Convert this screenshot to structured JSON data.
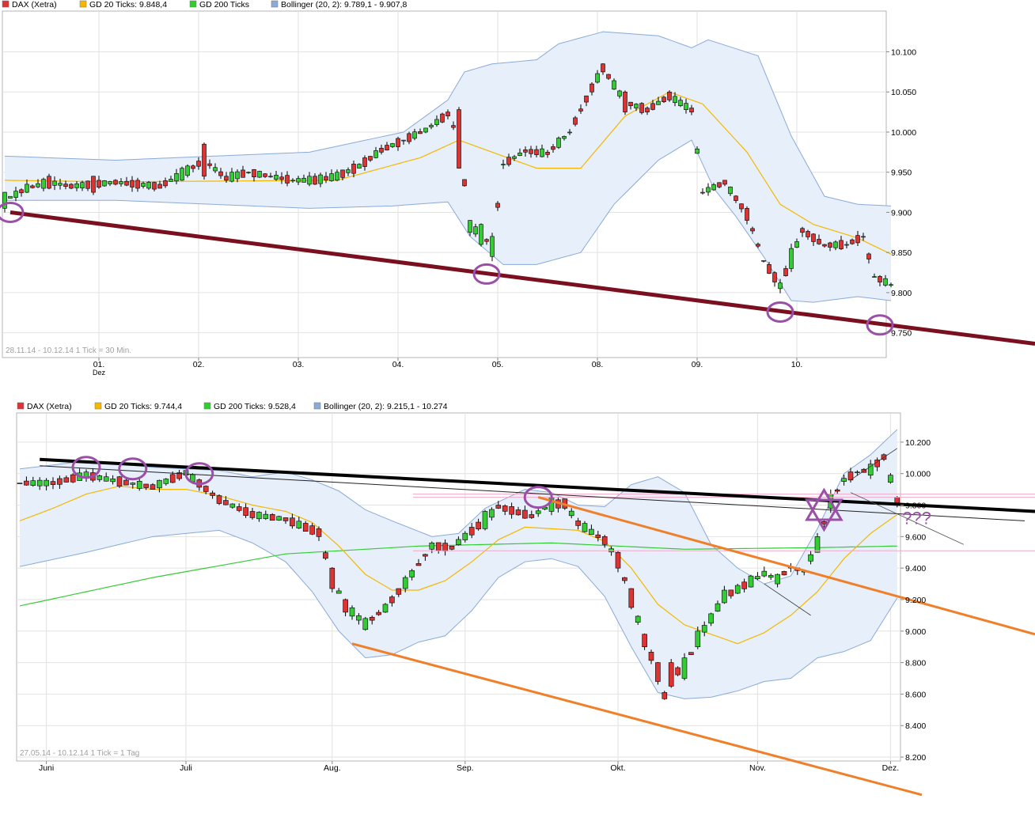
{
  "colors": {
    "bull": "#33cc33",
    "bear": "#dd3333",
    "ma20": "#f5b800",
    "ma200": "#33cc33",
    "band_fill": "#e6effa",
    "band_line": "#8aaad8",
    "oval": "#9b4fa8",
    "maroon": "#7a0f1f",
    "orange": "#f07f2a",
    "black": "#000000",
    "pink": "#f2a9c9",
    "grid": "#e2e2e2",
    "border": "#b5b5b5"
  },
  "chart_data": [
    {
      "type": "candlestick",
      "legend": [
        {
          "color": "#dd3333",
          "text": "DAX (Xetra)"
        },
        {
          "color": "#f5b800",
          "text": "GD 20 Ticks: 9.848,4"
        },
        {
          "color": "#33cc33",
          "text": "GD 200 Ticks"
        },
        {
          "color": "#8aaad8",
          "text": "Bollinger (20, 2): 9.789,1 - 9.907,8"
        }
      ],
      "info": "28.11.14 - 10.12.14   1 Tick = 30 Min.",
      "yticks": [
        "10.100",
        "10.050",
        "10.000",
        "9.950",
        "9.900",
        "9.850",
        "9.800",
        "9.750"
      ],
      "ylim": [
        9725,
        10135
      ],
      "xticks": [
        {
          "label": "01.",
          "sub": "Dez",
          "i": 17
        },
        {
          "label": "02.",
          "i": 35
        },
        {
          "label": "03.",
          "i": 53
        },
        {
          "label": "04.",
          "i": 71
        },
        {
          "label": "05.",
          "i": 89
        },
        {
          "label": "08.",
          "i": 107
        },
        {
          "label": "09.",
          "i": 125
        },
        {
          "label": "10.",
          "i": 143
        }
      ],
      "anchors": [
        [
          0,
          9905,
          9925
        ],
        [
          4,
          9925,
          9935
        ],
        [
          8,
          9945,
          9930
        ],
        [
          12,
          9935,
          9930
        ],
        [
          16,
          9945,
          9925
        ],
        [
          20,
          9940,
          9935
        ],
        [
          24,
          9940,
          9930
        ],
        [
          28,
          9935,
          9930
        ],
        [
          32,
          9940,
          9955
        ],
        [
          36,
          9985,
          9945
        ],
        [
          40,
          9945,
          9940
        ],
        [
          44,
          9950,
          9950
        ],
        [
          48,
          9945,
          9945
        ],
        [
          52,
          9940,
          9940
        ],
        [
          56,
          9945,
          9935
        ],
        [
          60,
          9940,
          9950
        ],
        [
          64,
          9955,
          9960
        ],
        [
          68,
          9980,
          9975
        ],
        [
          72,
          9990,
          9990
        ],
        [
          76,
          10000,
          10005
        ],
        [
          80,
          10025,
          10020
        ],
        [
          82,
          10028,
          9955
        ],
        [
          84,
          9875,
          9890
        ],
        [
          86,
          9860,
          9885
        ],
        [
          88,
          9845,
          9870
        ],
        [
          90,
          9960,
          9960
        ],
        [
          94,
          9978,
          9975
        ],
        [
          98,
          9975,
          9972
        ],
        [
          102,
          10000,
          10000
        ],
        [
          106,
          10060,
          10050
        ],
        [
          108,
          10085,
          10075
        ],
        [
          112,
          10050,
          10025
        ],
        [
          116,
          10030,
          10025
        ],
        [
          120,
          10050,
          10040
        ],
        [
          124,
          10030,
          10025
        ],
        [
          126,
          9925,
          9925
        ],
        [
          130,
          9940,
          9935
        ],
        [
          134,
          9905,
          9890
        ],
        [
          137,
          9840,
          9840
        ],
        [
          140,
          9805,
          9812
        ],
        [
          142,
          9830,
          9855
        ],
        [
          144,
          9880,
          9875
        ],
        [
          148,
          9860,
          9858
        ],
        [
          152,
          9860,
          9860
        ],
        [
          155,
          9870,
          9870
        ],
        [
          157,
          9820,
          9820
        ],
        [
          160,
          9810,
          9810
        ]
      ],
      "ma20_pts": [
        [
          0,
          9940
        ],
        [
          20,
          9938
        ],
        [
          60,
          9940
        ],
        [
          75,
          9968
        ],
        [
          82,
          9990
        ],
        [
          88,
          9975
        ],
        [
          96,
          9955
        ],
        [
          104,
          9955
        ],
        [
          112,
          10020
        ],
        [
          120,
          10050
        ],
        [
          126,
          10035
        ],
        [
          134,
          9975
        ],
        [
          140,
          9910
        ],
        [
          146,
          9885
        ],
        [
          154,
          9868
        ],
        [
          160,
          9848
        ]
      ],
      "band_upper_pts": [
        [
          0,
          9970
        ],
        [
          20,
          9965
        ],
        [
          55,
          9975
        ],
        [
          72,
          10000
        ],
        [
          80,
          10040
        ],
        [
          83,
          10075
        ],
        [
          88,
          10085
        ],
        [
          96,
          10090
        ],
        [
          100,
          10110
        ],
        [
          108,
          10125
        ],
        [
          118,
          10120
        ],
        [
          124,
          10105
        ],
        [
          127,
          10115
        ],
        [
          136,
          10095
        ],
        [
          142,
          9995
        ],
        [
          148,
          9920
        ],
        [
          154,
          9910
        ],
        [
          160,
          9908
        ]
      ],
      "band_lower_pts": [
        [
          0,
          9915
        ],
        [
          20,
          9915
        ],
        [
          55,
          9905
        ],
        [
          70,
          9908
        ],
        [
          80,
          9913
        ],
        [
          84,
          9870
        ],
        [
          90,
          9835
        ],
        [
          96,
          9835
        ],
        [
          104,
          9850
        ],
        [
          110,
          9910
        ],
        [
          118,
          9965
        ],
        [
          124,
          9990
        ],
        [
          128,
          9930
        ],
        [
          132,
          9895
        ],
        [
          137,
          9845
        ],
        [
          142,
          9790
        ],
        [
          146,
          9788
        ],
        [
          154,
          9795
        ],
        [
          160,
          9790
        ]
      ],
      "trend_maroon": [
        [
          1,
          9900
        ],
        [
          161,
          9757
        ]
      ],
      "ovals": [
        1,
        87,
        140,
        158
      ]
    },
    {
      "type": "candlestick",
      "legend": [
        {
          "color": "#dd3333",
          "text": "DAX (Xetra)"
        },
        {
          "color": "#f5b800",
          "text": "GD 20 Ticks: 9.744,4"
        },
        {
          "color": "#33cc33",
          "text": "GD 200 Ticks: 9.528,4"
        },
        {
          "color": "#8aaad8",
          "text": "Bollinger (20, 2): 9.215,1 - 10.274"
        }
      ],
      "info": "27.05.14 - 10.12.14   1 Tick = 1 Tag",
      "yticks": [
        "10.200",
        "10.000",
        "9.800",
        "9.600",
        "9.400",
        "9.200",
        "9.000",
        "8.800",
        "8.600",
        "8.400",
        "8.200"
      ],
      "ylim": [
        8160,
        10320
      ],
      "xticks": [
        {
          "label": "Juni",
          "i": 4
        },
        {
          "label": "Juli",
          "i": 25
        },
        {
          "label": "Aug.",
          "i": 47
        },
        {
          "label": "Sep.",
          "i": 67
        },
        {
          "label": "Okt.",
          "i": 90
        },
        {
          "label": "Nov.",
          "i": 111
        },
        {
          "label": "Dez.",
          "i": 131
        }
      ],
      "anchors": [
        [
          0,
          9940,
          9940
        ],
        [
          5,
          9950,
          9930
        ],
        [
          10,
          9970,
          10010
        ],
        [
          15,
          9980,
          9920
        ],
        [
          20,
          9930,
          9900
        ],
        [
          25,
          9990,
          10020
        ],
        [
          30,
          9860,
          9810
        ],
        [
          35,
          9760,
          9720
        ],
        [
          40,
          9720,
          9700
        ],
        [
          45,
          9650,
          9600
        ],
        [
          47,
          9400,
          9270
        ],
        [
          49,
          9200,
          9120
        ],
        [
          52,
          9010,
          9080
        ],
        [
          55,
          9120,
          9170
        ],
        [
          58,
          9270,
          9340
        ],
        [
          62,
          9520,
          9560
        ],
        [
          65,
          9540,
          9520
        ],
        [
          70,
          9650,
          9760
        ],
        [
          72,
          9800,
          9780
        ],
        [
          77,
          9740,
          9720
        ],
        [
          80,
          9760,
          9850
        ],
        [
          82,
          9840,
          9780
        ],
        [
          84,
          9700,
          9670
        ],
        [
          88,
          9600,
          9550
        ],
        [
          90,
          9500,
          9400
        ],
        [
          92,
          9270,
          9150
        ],
        [
          94,
          8980,
          8900
        ],
        [
          96,
          8800,
          8680
        ],
        [
          97,
          8610,
          8570
        ],
        [
          98,
          8800,
          8650
        ],
        [
          100,
          8700,
          8830
        ],
        [
          102,
          8900,
          9000
        ],
        [
          104,
          9050,
          9110
        ],
        [
          106,
          9180,
          9260
        ],
        [
          108,
          9240,
          9290
        ],
        [
          110,
          9280,
          9350
        ],
        [
          112,
          9350,
          9380
        ],
        [
          114,
          9300,
          9360
        ],
        [
          116,
          9410,
          9400
        ],
        [
          118,
          9380,
          9380
        ],
        [
          120,
          9500,
          9600
        ],
        [
          122,
          9780,
          9870
        ],
        [
          124,
          9950,
          9970
        ],
        [
          126,
          10010,
          10010
        ],
        [
          128,
          9990,
          10060
        ],
        [
          130,
          10120,
          10090
        ],
        [
          132,
          9850,
          9810
        ]
      ],
      "ma20_pts": [
        [
          0,
          9700
        ],
        [
          5,
          9780
        ],
        [
          10,
          9870
        ],
        [
          15,
          9920
        ],
        [
          20,
          9900
        ],
        [
          25,
          9900
        ],
        [
          30,
          9860
        ],
        [
          35,
          9800
        ],
        [
          40,
          9760
        ],
        [
          44,
          9690
        ],
        [
          48,
          9540
        ],
        [
          52,
          9360
        ],
        [
          56,
          9260
        ],
        [
          60,
          9260
        ],
        [
          64,
          9320
        ],
        [
          68,
          9440
        ],
        [
          72,
          9580
        ],
        [
          76,
          9660
        ],
        [
          80,
          9650
        ],
        [
          84,
          9640
        ],
        [
          88,
          9570
        ],
        [
          92,
          9400
        ],
        [
          96,
          9170
        ],
        [
          100,
          9040
        ],
        [
          104,
          8980
        ],
        [
          108,
          8920
        ],
        [
          112,
          8990
        ],
        [
          116,
          9100
        ],
        [
          120,
          9250
        ],
        [
          124,
          9460
        ],
        [
          128,
          9620
        ],
        [
          132,
          9740
        ]
      ],
      "ma200_pts": [
        [
          0,
          9160
        ],
        [
          20,
          9340
        ],
        [
          40,
          9490
        ],
        [
          60,
          9540
        ],
        [
          80,
          9560
        ],
        [
          100,
          9520
        ],
        [
          120,
          9530
        ],
        [
          132,
          9540
        ]
      ],
      "band_upper_pts": [
        [
          0,
          10030
        ],
        [
          10,
          10080
        ],
        [
          20,
          10040
        ],
        [
          30,
          10020
        ],
        [
          35,
          9980
        ],
        [
          40,
          10010
        ],
        [
          44,
          9960
        ],
        [
          48,
          9890
        ],
        [
          52,
          9770
        ],
        [
          56,
          9700
        ],
        [
          62,
          9600
        ],
        [
          66,
          9620
        ],
        [
          70,
          9780
        ],
        [
          76,
          9900
        ],
        [
          80,
          9880
        ],
        [
          84,
          9800
        ],
        [
          88,
          9790
        ],
        [
          92,
          9930
        ],
        [
          96,
          9980
        ],
        [
          100,
          9880
        ],
        [
          104,
          9550
        ],
        [
          108,
          9400
        ],
        [
          112,
          9300
        ],
        [
          116,
          9350
        ],
        [
          120,
          9650
        ],
        [
          124,
          10000
        ],
        [
          128,
          10120
        ],
        [
          132,
          10280
        ],
        [
          133,
          10260
        ]
      ],
      "band_lower_pts": [
        [
          0,
          9410
        ],
        [
          10,
          9500
        ],
        [
          20,
          9600
        ],
        [
          30,
          9640
        ],
        [
          35,
          9560
        ],
        [
          40,
          9440
        ],
        [
          44,
          9250
        ],
        [
          48,
          9000
        ],
        [
          52,
          8830
        ],
        [
          56,
          8850
        ],
        [
          60,
          8930
        ],
        [
          64,
          8970
        ],
        [
          68,
          9130
        ],
        [
          72,
          9340
        ],
        [
          76,
          9440
        ],
        [
          80,
          9460
        ],
        [
          84,
          9410
        ],
        [
          88,
          9220
        ],
        [
          92,
          8900
        ],
        [
          96,
          8610
        ],
        [
          100,
          8570
        ],
        [
          104,
          8580
        ],
        [
          108,
          8620
        ],
        [
          112,
          8680
        ],
        [
          116,
          8700
        ],
        [
          120,
          8830
        ],
        [
          124,
          8870
        ],
        [
          128,
          8940
        ],
        [
          132,
          9210
        ],
        [
          133,
          9215
        ]
      ],
      "trend_black_thick": [
        [
          3,
          10090
        ],
        [
          150,
          9760
        ]
      ],
      "trend_black_thin": [
        [
          3,
          10050
        ],
        [
          150,
          9700
        ]
      ],
      "orange_upper": [
        [
          78,
          9850
        ],
        [
          168,
          8980
        ]
      ],
      "orange_lower": [
        [
          50,
          8920
        ],
        [
          155,
          7960
        ]
      ],
      "pink_levels": [
        9870,
        9870,
        9550
      ],
      "ovals": [
        [
          10,
          10040
        ],
        [
          17,
          10030
        ],
        [
          27,
          10000
        ],
        [
          78,
          9850
        ]
      ],
      "star": [
        121,
        9770
      ],
      "annotation_qqq": "???"
    }
  ]
}
